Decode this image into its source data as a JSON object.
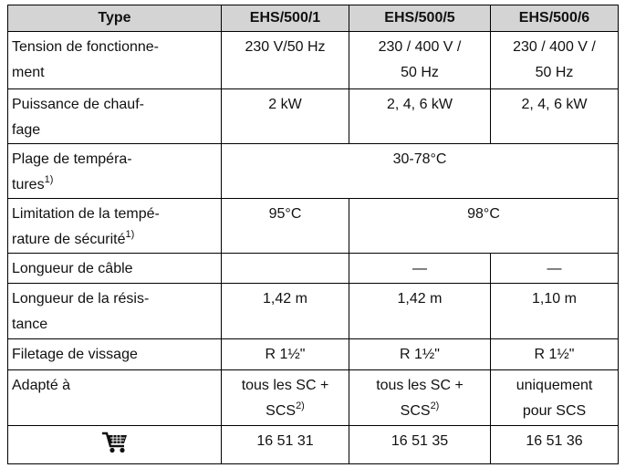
{
  "table": {
    "header": [
      "Type",
      "EHS/500/1",
      "EHS/500/5",
      "EHS/500/6"
    ],
    "rows": [
      {
        "label": [
          "Tension de fonctionne-",
          "ment"
        ],
        "values": [
          [
            "230 V/50 Hz"
          ],
          [
            "230 / 400 V /",
            "50 Hz"
          ],
          [
            "230 / 400 V /",
            "50 Hz"
          ]
        ]
      },
      {
        "label": [
          "Puissance de chauf-",
          "fage"
        ],
        "values": [
          [
            "2 kW"
          ],
          [
            "2, 4, 6 kW"
          ],
          [
            "2, 4, 6 kW"
          ]
        ]
      },
      {
        "label": [
          "Plage de tempéra-",
          "tures"
        ],
        "note": "1)",
        "values": [
          [
            "30-78°C"
          ]
        ]
      },
      {
        "label": [
          "Limitation de la tempé-",
          "rature de sécurité"
        ],
        "note": "1)",
        "values": [
          [
            "95°C"
          ],
          [
            "98°C"
          ]
        ]
      },
      {
        "label": [
          "Longueur de câble"
        ],
        "values": [
          [
            "—"
          ],
          [
            "—"
          ]
        ]
      },
      {
        "label": [
          "Longueur de la résis-",
          "tance"
        ],
        "values": [
          [
            "1,42 m"
          ],
          [
            "1,42 m"
          ],
          [
            "1,10 m"
          ]
        ]
      },
      {
        "label": [
          "Filetage de vissage"
        ],
        "values": [
          [
            "R 1½\""
          ],
          [
            "R 1½\""
          ],
          [
            "R 1½\""
          ]
        ]
      },
      {
        "label": [
          "Adapté à"
        ],
        "values": [
          [
            "tous les SC +",
            "SCS"
          ],
          [
            "tous les SC +",
            "SCS"
          ],
          [
            "uniquement",
            "pour SCS"
          ]
        ],
        "value_notes": [
          "2)",
          "2)"
        ]
      },
      {
        "values": [
          [
            "16 51 31"
          ],
          [
            "16 51 35"
          ],
          [
            "16 51 36"
          ]
        ]
      }
    ]
  }
}
